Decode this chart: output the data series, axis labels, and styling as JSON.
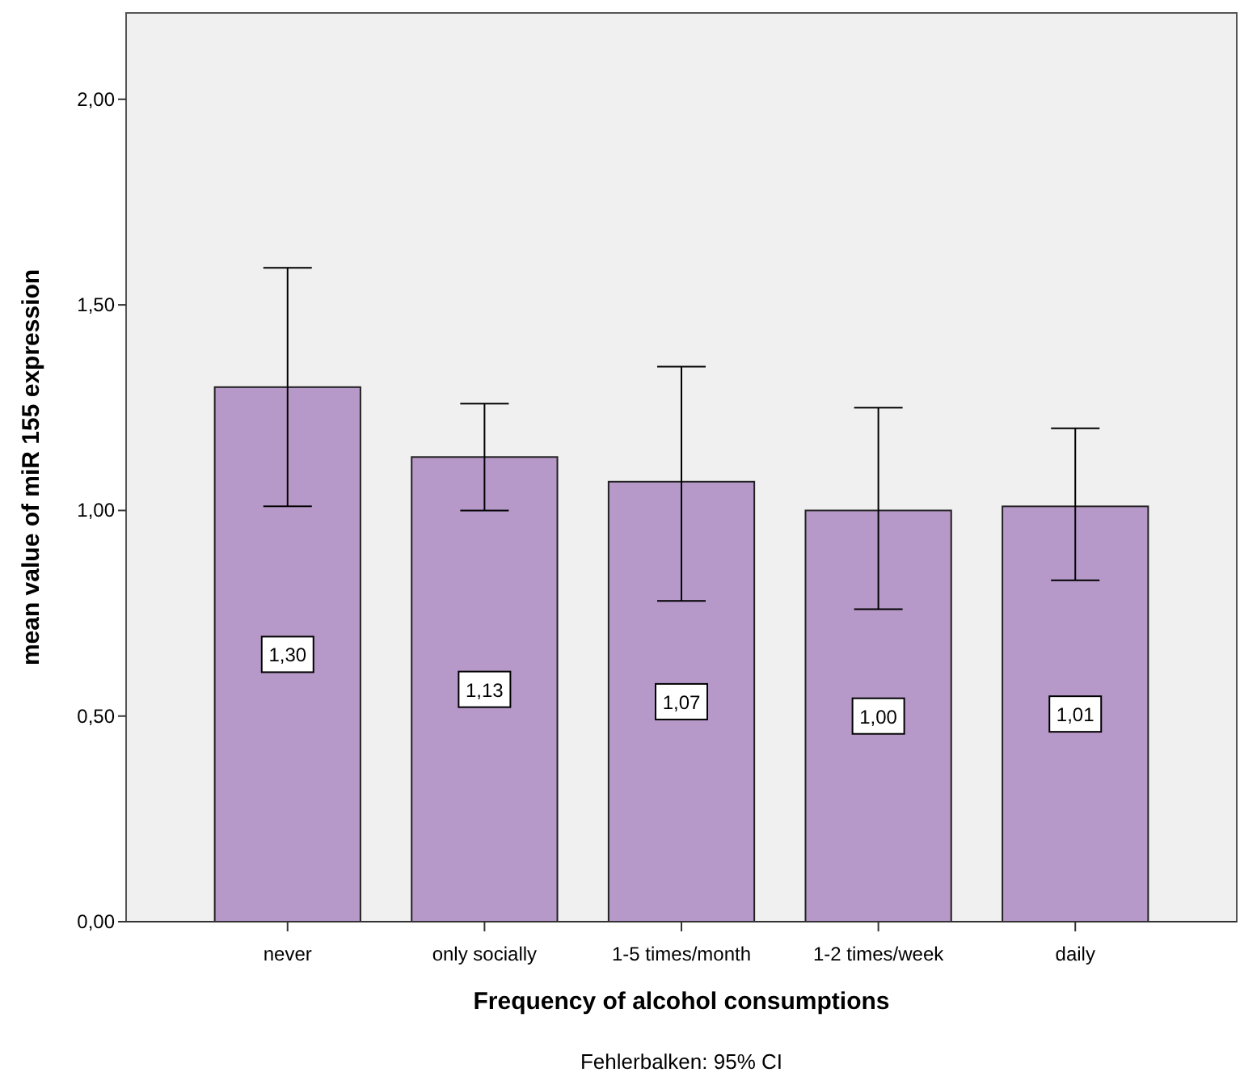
{
  "chart_data": {
    "type": "bar",
    "xlabel": "Frequency of alcohol consumptions",
    "ylabel": "mean value of miR 155 expression",
    "categories": [
      "never",
      "only socially",
      "1-5 times/month",
      "1-2 times/week",
      "daily"
    ],
    "values": [
      1.3,
      1.13,
      1.07,
      1.0,
      1.01
    ],
    "value_labels": [
      "1,30",
      "1,13",
      "1,07",
      "1,00",
      "1,01"
    ],
    "errors": [
      [
        1.01,
        1.59
      ],
      [
        1.0,
        1.26
      ],
      [
        0.78,
        1.35
      ],
      [
        0.76,
        1.25
      ],
      [
        0.83,
        1.2
      ]
    ],
    "color": "#b799c9",
    "ylim": [
      0,
      2.21
    ],
    "yticks": [
      {
        "value": 0,
        "label": "0,00"
      },
      {
        "value": 0.5,
        "label": "0,50"
      },
      {
        "value": 1,
        "label": "1,00"
      },
      {
        "value": 1.5,
        "label": "1,50"
      },
      {
        "value": 2,
        "label": "2,00"
      }
    ],
    "annotations": [
      "Fehlerbalken: 95% CI"
    ]
  }
}
